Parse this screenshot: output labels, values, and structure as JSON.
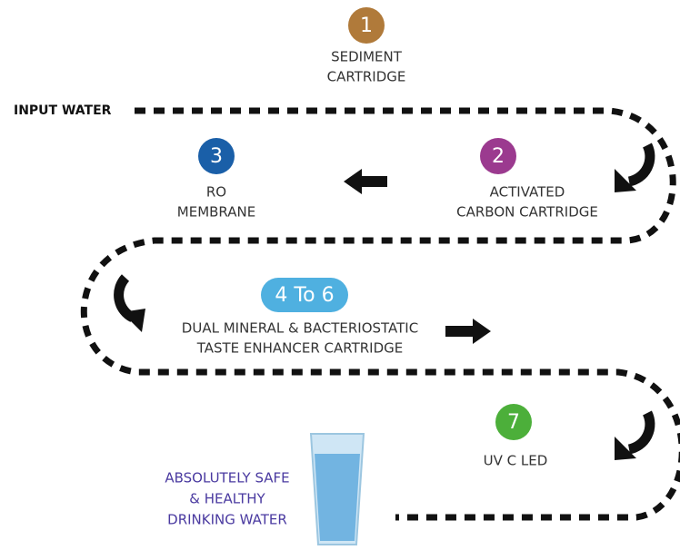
{
  "input_label": "INPUT WATER",
  "steps": [
    {
      "number": "1",
      "lines": [
        "SEDIMENT",
        "CARTRIDGE"
      ]
    },
    {
      "number": "2",
      "lines": [
        "ACTIVATED",
        "CARBON CARTRIDGE"
      ]
    },
    {
      "number": "3",
      "lines": [
        "RO",
        "MEMBRANE"
      ]
    },
    {
      "number": "4 To 6",
      "lines": [
        "DUAL MINERAL & BACTERIOSTATIC",
        "TASTE ENHANCER CARTRIDGE"
      ]
    },
    {
      "number": "7",
      "lines": [
        "UV C LED"
      ]
    }
  ],
  "output_lines": [
    "ABSOLUTELY SAFE",
    "& HEALTHY",
    "DRINKING WATER"
  ]
}
